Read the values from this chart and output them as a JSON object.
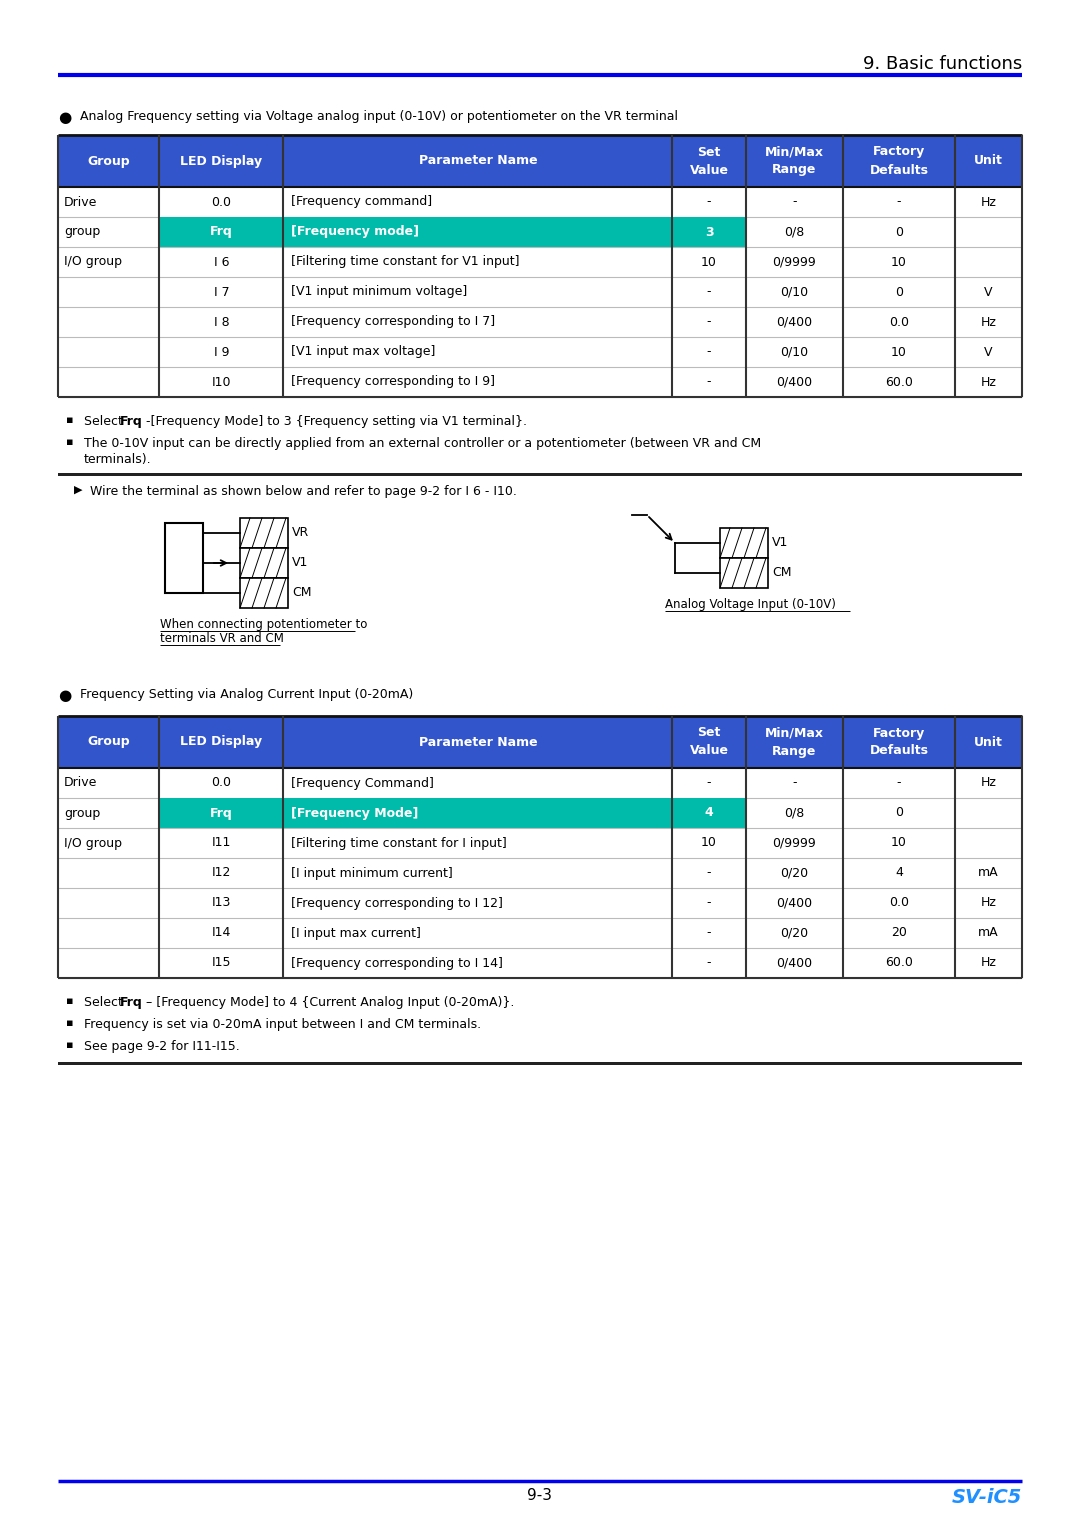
{
  "page_title": "9. Basic functions",
  "page_number": "9-3",
  "brand": "SV-iC5",
  "bullet1_text": "Analog Frequency setting via Voltage analog input (0-10V) or potentiometer on the VR terminal",
  "table1_header": [
    "Group",
    "LED Display",
    "Parameter Name",
    "Set\nValue",
    "Min/Max\nRange",
    "Factory\nDefaults",
    "Unit"
  ],
  "table1_rows": [
    [
      "Drive",
      "0.0",
      "[Frequency command]",
      "-",
      "-",
      "-",
      "Hz",
      "white"
    ],
    [
      "group",
      "Frq",
      "[Frequency mode]",
      "3",
      "0/8",
      "0",
      "",
      "teal"
    ],
    [
      "I/O group",
      "I 6",
      "[Filtering time constant for V1 input]",
      "10",
      "0/9999",
      "10",
      "",
      "white"
    ],
    [
      "",
      "I 7",
      "[V1 input minimum voltage]",
      "-",
      "0/10",
      "0",
      "V",
      "white"
    ],
    [
      "",
      "I 8",
      "[Frequency corresponding to I 7]",
      "-",
      "0/400",
      "0.0",
      "Hz",
      "white"
    ],
    [
      "",
      "I 9",
      "[V1 input max voltage]",
      "-",
      "0/10",
      "10",
      "V",
      "white"
    ],
    [
      "",
      "I10",
      "[Frequency corresponding to I 9]",
      "-",
      "0/400",
      "60.0",
      "Hz",
      "white"
    ]
  ],
  "wire_note": "Wire the terminal as shown below and refer to page 9-2 for I 6 - I10.",
  "diagram1_caption1": "When connecting potentiometer to\nterminals VR and CM",
  "diagram1_caption2": "Analog Voltage Input (0-10V)",
  "bullet2_text": "Frequency Setting via Analog Current Input (0-20mA)",
  "table2_rows": [
    [
      "Drive",
      "0.0",
      "[Frequency Command]",
      "-",
      "-",
      "-",
      "Hz",
      "white"
    ],
    [
      "group",
      "Frq",
      "[Frequency Mode]",
      "4",
      "0/8",
      "0",
      "",
      "teal"
    ],
    [
      "I/O group",
      "I11",
      "[Filtering time constant for I input]",
      "10",
      "0/9999",
      "10",
      "",
      "white"
    ],
    [
      "",
      "I12",
      "[I input minimum current]",
      "-",
      "0/20",
      "4",
      "mA",
      "white"
    ],
    [
      "",
      "I13",
      "[Frequency corresponding to I 12]",
      "-",
      "0/400",
      "0.0",
      "Hz",
      "white"
    ],
    [
      "",
      "I14",
      "[I input max current]",
      "-",
      "0/20",
      "20",
      "mA",
      "white"
    ],
    [
      "",
      "I15",
      "[Frequency corresponding to I 14]",
      "-",
      "0/400",
      "60.0",
      "Hz",
      "white"
    ]
  ],
  "header_color": "#3355CC",
  "teal_color": "#00BBAA",
  "line_color": "#BBBBBB",
  "dark_line_color": "#222222",
  "blue_color": "#0000EE",
  "brand_color": "#1E90FF"
}
